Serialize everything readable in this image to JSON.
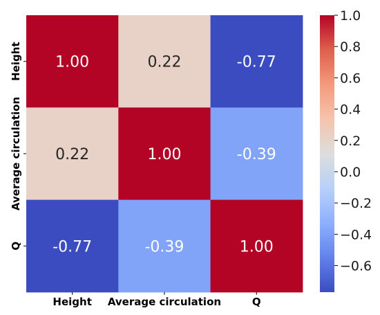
{
  "chart_data": {
    "type": "heatmap",
    "title": "",
    "x_tick_labels": [
      "Height",
      "Average circulation",
      "Q"
    ],
    "y_tick_labels": [
      "Height",
      "Average circulation",
      "Q"
    ],
    "cell_labels": [
      [
        "1.00",
        "0.22",
        "-0.77"
      ],
      [
        "0.22",
        "1.00",
        "-0.39"
      ],
      [
        "-0.77",
        "-0.39",
        "1.00"
      ]
    ],
    "values": [
      [
        1.0,
        0.22,
        -0.77
      ],
      [
        0.22,
        1.0,
        -0.39
      ],
      [
        -0.77,
        -0.39,
        1.0
      ]
    ],
    "colormap": "coolwarm",
    "colorbar": {
      "range": [
        -0.77,
        1.0
      ],
      "ticks": [
        1.0,
        0.8,
        0.6,
        0.4,
        0.2,
        0.0,
        -0.2,
        -0.4,
        -0.6
      ],
      "tick_labels": [
        "1.0",
        "0.8",
        "0.6",
        "0.4",
        "0.2",
        "0.0",
        "−0.2",
        "−0.4",
        "−0.6"
      ]
    },
    "grid": false
  }
}
